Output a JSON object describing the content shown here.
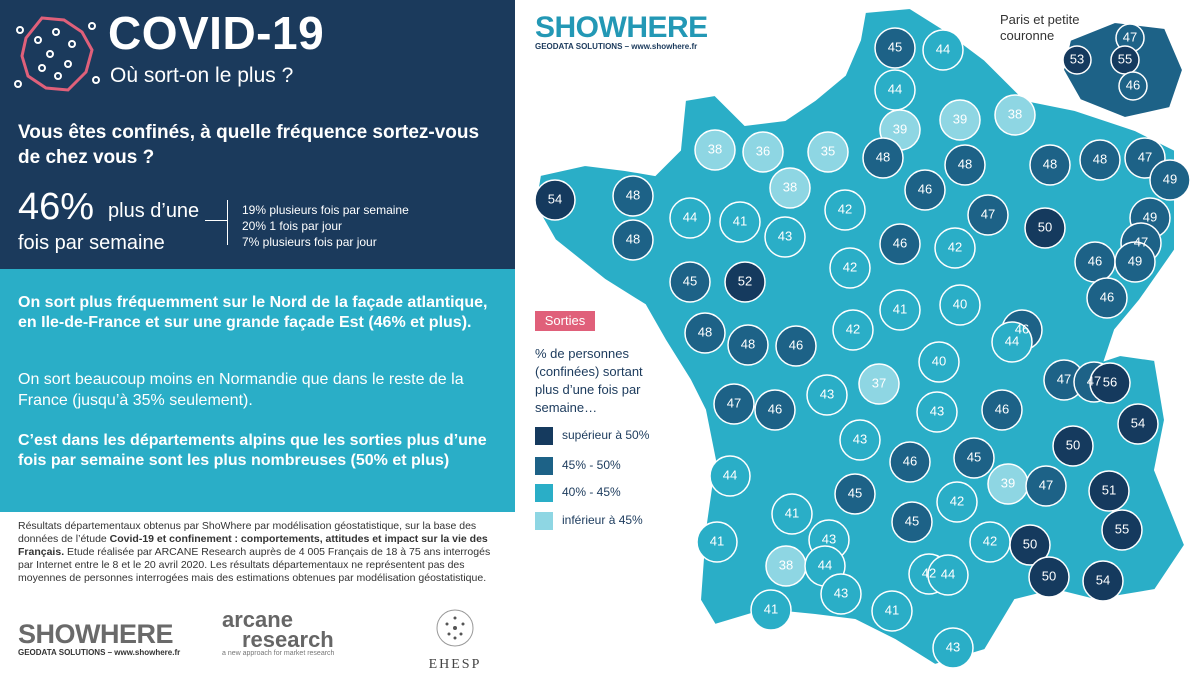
{
  "header": {
    "title": "COVID-19",
    "subtitle": "Où sort-on le plus ?"
  },
  "question": "Vous êtes confinés, à quelle fréquence sortez-vous de chez vous ?",
  "headline": {
    "pct": "46%",
    "text_line1": "plus d’une",
    "text_line2": "fois par semaine",
    "details": [
      "19%  plusieurs fois par semaine",
      "20%  1 fois par jour",
      "7%  plusieurs fois par jour"
    ]
  },
  "findings": {
    "p1": "On sort plus fréquemment sur le Nord de la façade atlantique, en Ile-de-France et sur une grande façade Est  (46% et plus).",
    "p2": "On sort beaucoup moins en Normandie que dans le reste de la France (jusqu’à 35% seulement).",
    "p3": "C’est dans les départements alpins que les sorties plus d’une fois par semaine sont les plus nombreuses (50% et plus)"
  },
  "methodology": {
    "line_a": "Résultats départementaux obtenus par ShoWhere par modélisation géostatistique, sur la base des données de l’étude ",
    "study_title": "Covid-19 et confinement : comportements, attitudes et impact sur la vie des Français.",
    "line_b": " Etude réalisée par ARCANE Research auprès de 4 005 Français de 18 à 75 ans interrogés par Internet entre le 8 et le 20 avril 2020. Les résultats départementaux ne représentent pas des moyennes de personnes interrogées mais des estimations obtenues par modélisation géostatistique."
  },
  "logos": {
    "showhere": "SHOWHERE",
    "showhere_sub": "GEODATA SOLUTIONS – www.showhere.fr",
    "arcane_line1": "arcane",
    "arcane_line2": "research",
    "arcane_sub": "a new approach for market research",
    "ehesp": "EHESP"
  },
  "legend": {
    "title": "Sorties",
    "description": "% de personnes (confinées) sortant plus d’une fois par semaine…",
    "items": [
      {
        "label": "supérieur à 50%",
        "color": "#153a5e"
      },
      {
        "label": "45% - 50%",
        "color": "#1d6287"
      },
      {
        "label": "40% - 45%",
        "color": "#2aaec7"
      },
      {
        "label": "inférieur à 45%",
        "color": "#8ed6e3"
      }
    ]
  },
  "paris_inset": {
    "label_line1": "Paris et petite",
    "label_line2": "couronne",
    "values": [
      "47",
      "53",
      "55",
      "46"
    ]
  },
  "map_values": [
    "45",
    "44",
    "44",
    "39",
    "39",
    "38",
    "38",
    "36",
    "35",
    "48",
    "48",
    "48",
    "48",
    "47",
    "49",
    "54",
    "48",
    "48",
    "38",
    "46",
    "44",
    "41",
    "42",
    "49",
    "47",
    "50",
    "43",
    "46",
    "42",
    "46",
    "47",
    "42",
    "49",
    "52",
    "45",
    "40",
    "46",
    "42",
    "41",
    "48",
    "48",
    "46",
    "46",
    "44",
    "47",
    "37",
    "40",
    "47",
    "56",
    "43",
    "47",
    "46",
    "46",
    "54",
    "43",
    "43",
    "46",
    "45",
    "50",
    "44",
    "45",
    "39",
    "51",
    "41",
    "45",
    "42",
    "47",
    "43",
    "42",
    "42",
    "50",
    "55",
    "41",
    "38",
    "44",
    "44",
    "50",
    "54",
    "41",
    "43",
    "41",
    "43"
  ]
}
